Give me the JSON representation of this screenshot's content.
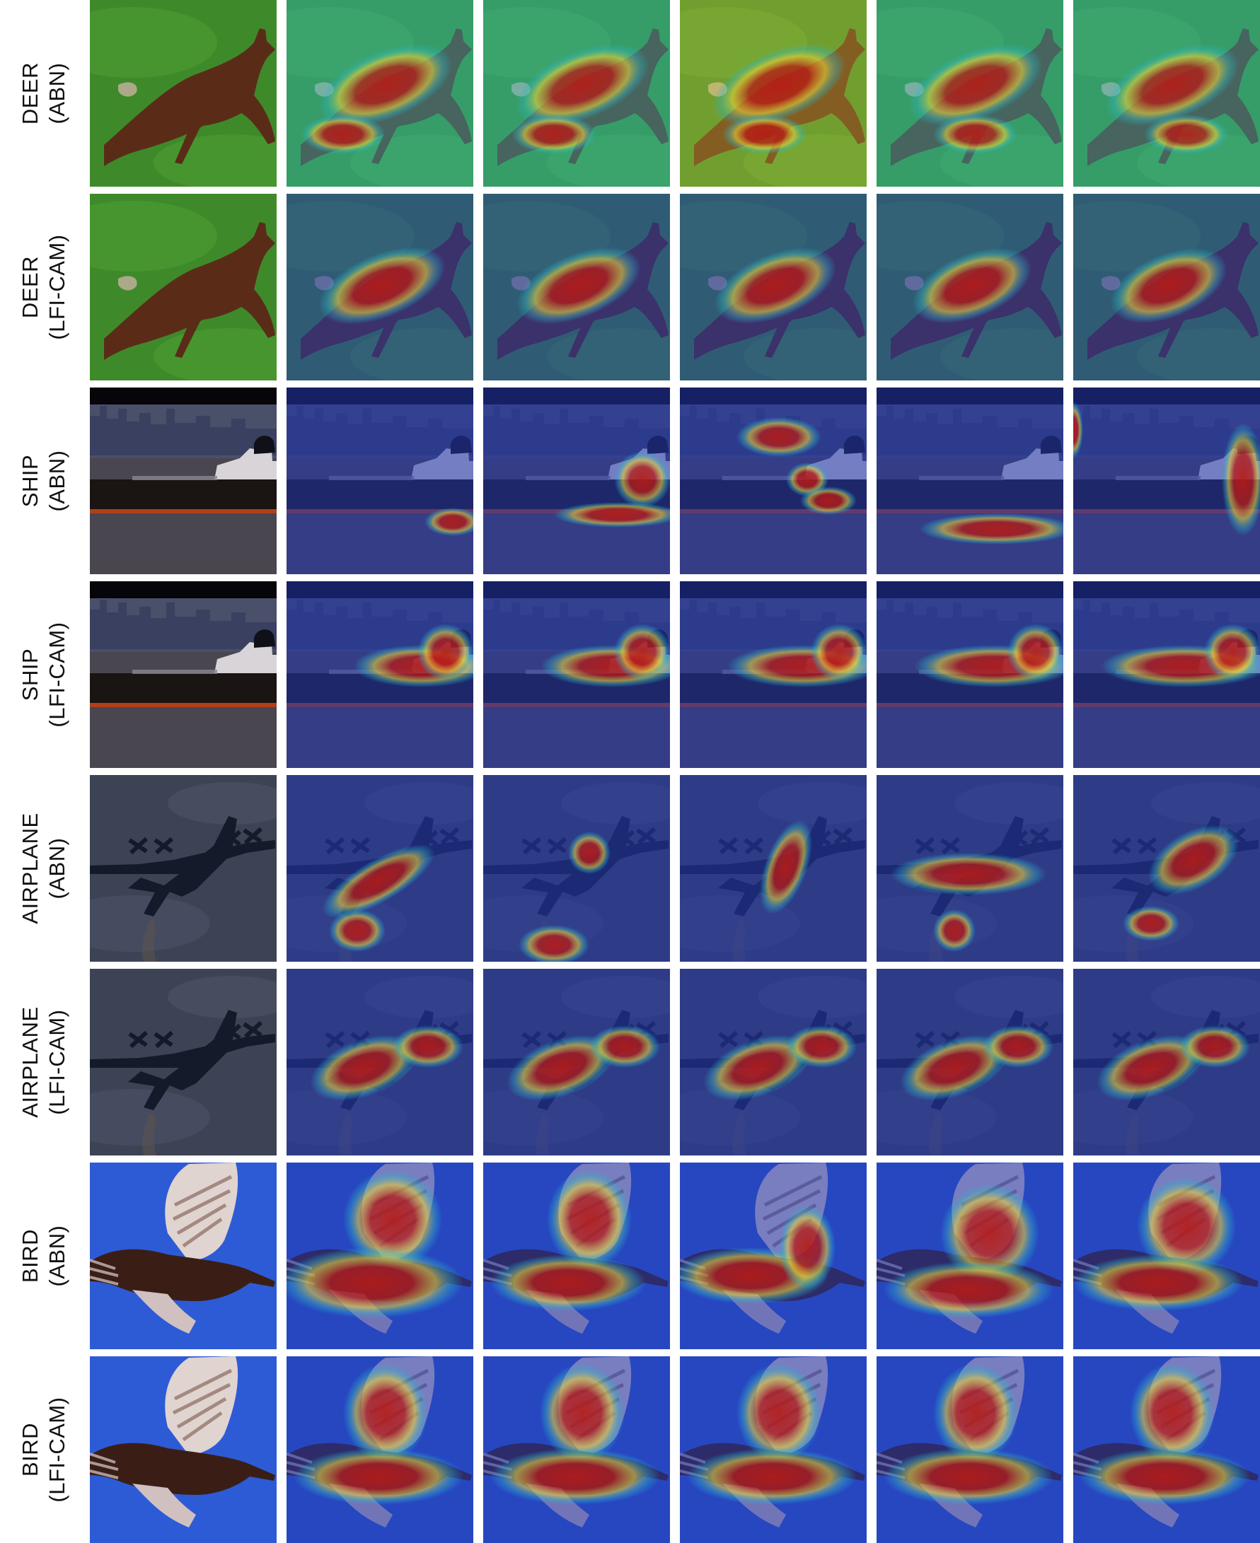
{
  "columns_per_row": 6,
  "colors": {
    "grass": "#3e8a2a",
    "grass_light": "#5aa83a",
    "deer": "#5a2c18",
    "city_sky": "#4a4f6a",
    "ship_hull": "#1a1412",
    "water": "#4a4650",
    "plane_sky": "#3c4354",
    "plane_body": "#141a2a",
    "bird_sky": "#2d5bd6",
    "bird_body": "#3a1e16",
    "jet_blue": "#2236b0",
    "jet_cyan": "#2bb8c8",
    "jet_yellow": "#e8d23a",
    "jet_red": "#b81a14"
  },
  "rows": [
    {
      "subject": "deer",
      "line1": "DEER",
      "line2": "(ABN)",
      "method": "ABN",
      "cells": [
        {
          "kind": "original",
          "name": "deer-original-image"
        },
        {
          "kind": "heatmap",
          "name": "deer-abn-attention-map-1",
          "background": "cyan"
        },
        {
          "kind": "heatmap",
          "name": "deer-abn-attention-map-2",
          "background": "cyan"
        },
        {
          "kind": "heatmap",
          "name": "deer-abn-attention-map-3",
          "background": "yellow"
        },
        {
          "kind": "heatmap",
          "name": "deer-abn-attention-map-4",
          "background": "cyan"
        },
        {
          "kind": "heatmap",
          "name": "deer-abn-attention-map-5",
          "background": "cyan"
        }
      ]
    },
    {
      "subject": "deer",
      "line1": "DEER",
      "line2": "(LFI-CAM)",
      "method": "LFI-CAM",
      "cells": [
        {
          "kind": "original",
          "name": "deer-original-image"
        },
        {
          "kind": "heatmap",
          "name": "deer-lfi-cam-attention-map-1",
          "background": "blue"
        },
        {
          "kind": "heatmap",
          "name": "deer-lfi-cam-attention-map-2",
          "background": "blue"
        },
        {
          "kind": "heatmap",
          "name": "deer-lfi-cam-attention-map-3",
          "background": "blue"
        },
        {
          "kind": "heatmap",
          "name": "deer-lfi-cam-attention-map-4",
          "background": "blue"
        },
        {
          "kind": "heatmap",
          "name": "deer-lfi-cam-attention-map-5",
          "background": "blue"
        }
      ]
    },
    {
      "subject": "ship",
      "line1": "SHIP",
      "line2": "(ABN)",
      "method": "ABN",
      "cells": [
        {
          "kind": "original",
          "name": "ship-original-image"
        },
        {
          "kind": "heatmap",
          "name": "ship-abn-attention-map-1",
          "background": "blue"
        },
        {
          "kind": "heatmap",
          "name": "ship-abn-attention-map-2",
          "background": "blue"
        },
        {
          "kind": "heatmap",
          "name": "ship-abn-attention-map-3",
          "background": "blue"
        },
        {
          "kind": "heatmap",
          "name": "ship-abn-attention-map-4",
          "background": "blue"
        },
        {
          "kind": "heatmap",
          "name": "ship-abn-attention-map-5",
          "background": "blue"
        }
      ]
    },
    {
      "subject": "ship",
      "line1": "SHIP",
      "line2": "(LFI-CAM)",
      "method": "LFI-CAM",
      "cells": [
        {
          "kind": "original",
          "name": "ship-original-image"
        },
        {
          "kind": "heatmap",
          "name": "ship-lfi-cam-attention-map-1",
          "background": "blue"
        },
        {
          "kind": "heatmap",
          "name": "ship-lfi-cam-attention-map-2",
          "background": "blue"
        },
        {
          "kind": "heatmap",
          "name": "ship-lfi-cam-attention-map-3",
          "background": "blue"
        },
        {
          "kind": "heatmap",
          "name": "ship-lfi-cam-attention-map-4",
          "background": "blue"
        },
        {
          "kind": "heatmap",
          "name": "ship-lfi-cam-attention-map-5",
          "background": "blue"
        }
      ]
    },
    {
      "subject": "airplane",
      "line1": "AIRPLANE",
      "line2": "(ABN)",
      "method": "ABN",
      "cells": [
        {
          "kind": "original",
          "name": "airplane-original-image"
        },
        {
          "kind": "heatmap",
          "name": "airplane-abn-attention-map-1",
          "background": "blue"
        },
        {
          "kind": "heatmap",
          "name": "airplane-abn-attention-map-2",
          "background": "blue"
        },
        {
          "kind": "heatmap",
          "name": "airplane-abn-attention-map-3",
          "background": "blue"
        },
        {
          "kind": "heatmap",
          "name": "airplane-abn-attention-map-4",
          "background": "blue"
        },
        {
          "kind": "heatmap",
          "name": "airplane-abn-attention-map-5",
          "background": "blue"
        }
      ]
    },
    {
      "subject": "airplane",
      "line1": "AIRPLANE",
      "line2": "(LFI-CAM)",
      "method": "LFI-CAM",
      "cells": [
        {
          "kind": "original",
          "name": "airplane-original-image"
        },
        {
          "kind": "heatmap",
          "name": "airplane-lfi-cam-attention-map-1",
          "background": "blue"
        },
        {
          "kind": "heatmap",
          "name": "airplane-lfi-cam-attention-map-2",
          "background": "blue"
        },
        {
          "kind": "heatmap",
          "name": "airplane-lfi-cam-attention-map-3",
          "background": "blue"
        },
        {
          "kind": "heatmap",
          "name": "airplane-lfi-cam-attention-map-4",
          "background": "blue"
        },
        {
          "kind": "heatmap",
          "name": "airplane-lfi-cam-attention-map-5",
          "background": "blue"
        }
      ]
    },
    {
      "subject": "bird",
      "line1": "BIRD",
      "line2": "(ABN)",
      "method": "ABN",
      "cells": [
        {
          "kind": "original",
          "name": "bird-original-image"
        },
        {
          "kind": "heatmap",
          "name": "bird-abn-attention-map-1",
          "background": "blue"
        },
        {
          "kind": "heatmap",
          "name": "bird-abn-attention-map-2",
          "background": "blue"
        },
        {
          "kind": "heatmap",
          "name": "bird-abn-attention-map-3",
          "background": "blue"
        },
        {
          "kind": "heatmap",
          "name": "bird-abn-attention-map-4",
          "background": "blue"
        },
        {
          "kind": "heatmap",
          "name": "bird-abn-attention-map-5",
          "background": "blue"
        }
      ]
    },
    {
      "subject": "bird",
      "line1": "BIRD",
      "line2": "(LFI-CAM)",
      "method": "LFI-CAM",
      "cells": [
        {
          "kind": "original",
          "name": "bird-original-image"
        },
        {
          "kind": "heatmap",
          "name": "bird-lfi-cam-attention-map-1",
          "background": "blue"
        },
        {
          "kind": "heatmap",
          "name": "bird-lfi-cam-attention-map-2",
          "background": "blue"
        },
        {
          "kind": "heatmap",
          "name": "bird-lfi-cam-attention-map-3",
          "background": "blue"
        },
        {
          "kind": "heatmap",
          "name": "bird-lfi-cam-attention-map-4",
          "background": "blue"
        },
        {
          "kind": "heatmap",
          "name": "bird-lfi-cam-attention-map-5",
          "background": "blue"
        }
      ]
    }
  ]
}
